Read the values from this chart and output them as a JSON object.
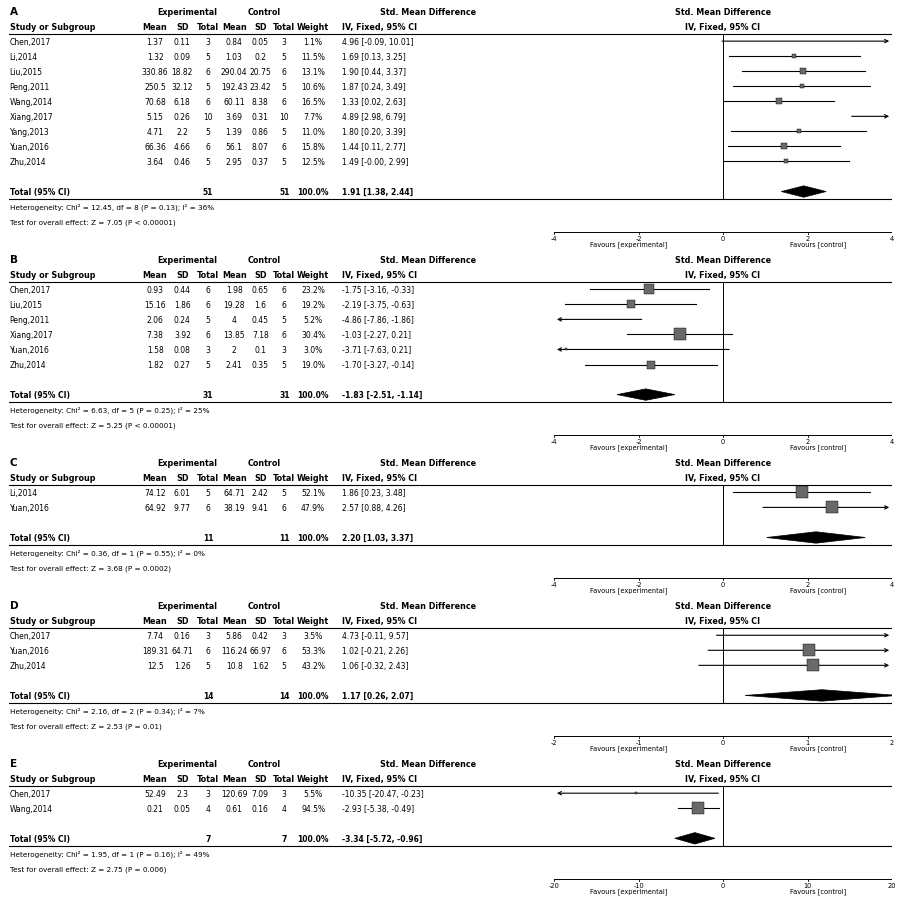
{
  "panels": [
    {
      "label": "A",
      "studies": [
        {
          "name": "Chen,2017",
          "exp_mean": "1.37",
          "exp_sd": "0.11",
          "exp_n": "3",
          "ctrl_mean": "0.84",
          "ctrl_sd": "0.05",
          "ctrl_n": "3",
          "weight": "1.1%",
          "ci_str": "4.96 [-0.09, 10.01]",
          "smd": 4.96,
          "ci_lo": -0.09,
          "ci_hi": 10.01
        },
        {
          "name": "Li,2014",
          "exp_mean": "1.32",
          "exp_sd": "0.09",
          "exp_n": "5",
          "ctrl_mean": "1.03",
          "ctrl_sd": "0.2",
          "ctrl_n": "5",
          "weight": "11.5%",
          "ci_str": "1.69 [0.13, 3.25]",
          "smd": 1.69,
          "ci_lo": 0.13,
          "ci_hi": 3.25
        },
        {
          "name": "Liu,2015",
          "exp_mean": "330.86",
          "exp_sd": "18.82",
          "exp_n": "6",
          "ctrl_mean": "290.04",
          "ctrl_sd": "20.75",
          "ctrl_n": "6",
          "weight": "13.1%",
          "ci_str": "1.90 [0.44, 3.37]",
          "smd": 1.9,
          "ci_lo": 0.44,
          "ci_hi": 3.37
        },
        {
          "name": "Peng,2011",
          "exp_mean": "250.5",
          "exp_sd": "32.12",
          "exp_n": "5",
          "ctrl_mean": "192.43",
          "ctrl_sd": "23.42",
          "ctrl_n": "5",
          "weight": "10.6%",
          "ci_str": "1.87 [0.24, 3.49]",
          "smd": 1.87,
          "ci_lo": 0.24,
          "ci_hi": 3.49
        },
        {
          "name": "Wang,2014",
          "exp_mean": "70.68",
          "exp_sd": "6.18",
          "exp_n": "6",
          "ctrl_mean": "60.11",
          "ctrl_sd": "8.38",
          "ctrl_n": "6",
          "weight": "16.5%",
          "ci_str": "1.33 [0.02, 2.63]",
          "smd": 1.33,
          "ci_lo": 0.02,
          "ci_hi": 2.63
        },
        {
          "name": "Xiang,2017",
          "exp_mean": "5.15",
          "exp_sd": "0.26",
          "exp_n": "10",
          "ctrl_mean": "3.69",
          "ctrl_sd": "0.31",
          "ctrl_n": "10",
          "weight": "7.7%",
          "ci_str": "4.89 [2.98, 6.79]",
          "smd": 4.89,
          "ci_lo": 2.98,
          "ci_hi": 6.79
        },
        {
          "name": "Yang,2013",
          "exp_mean": "4.71",
          "exp_sd": "2.2",
          "exp_n": "5",
          "ctrl_mean": "1.39",
          "ctrl_sd": "0.86",
          "ctrl_n": "5",
          "weight": "11.0%",
          "ci_str": "1.80 [0.20, 3.39]",
          "smd": 1.8,
          "ci_lo": 0.2,
          "ci_hi": 3.39
        },
        {
          "name": "Yuan,2016",
          "exp_mean": "66.36",
          "exp_sd": "4.66",
          "exp_n": "6",
          "ctrl_mean": "56.1",
          "ctrl_sd": "8.07",
          "ctrl_n": "6",
          "weight": "15.8%",
          "ci_str": "1.44 [0.11, 2.77]",
          "smd": 1.44,
          "ci_lo": 0.11,
          "ci_hi": 2.77
        },
        {
          "name": "Zhu,2014",
          "exp_mean": "3.64",
          "exp_sd": "0.46",
          "exp_n": "5",
          "ctrl_mean": "2.95",
          "ctrl_sd": "0.37",
          "ctrl_n": "5",
          "weight": "12.5%",
          "ci_str": "1.49 [-0.00, 2.99]",
          "smd": 1.49,
          "ci_lo": -0.0,
          "ci_hi": 2.99
        }
      ],
      "total_n_exp": "51",
      "total_n_ctrl": "51",
      "total_str": "1.91 [1.38, 2.44]",
      "total_smd": 1.91,
      "total_ci_lo": 1.38,
      "total_ci_hi": 2.44,
      "het_str": "Heterogeneity: Chi² = 12.45, df = 8 (P = 0.13); I² = 36%",
      "test_str": "Test for overall effect: Z = 7.05 (P < 0.00001)",
      "xlim": [
        -4,
        4
      ],
      "xticks": [
        -4,
        -2,
        0,
        2,
        4
      ],
      "favours_left": "Favours [experimental]",
      "favours_right": "Favours [control]"
    },
    {
      "label": "B",
      "studies": [
        {
          "name": "Chen,2017",
          "exp_mean": "0.93",
          "exp_sd": "0.44",
          "exp_n": "6",
          "ctrl_mean": "1.98",
          "ctrl_sd": "0.65",
          "ctrl_n": "6",
          "weight": "23.2%",
          "ci_str": "-1.75 [-3.16, -0.33]",
          "smd": -1.75,
          "ci_lo": -3.16,
          "ci_hi": -0.33
        },
        {
          "name": "Liu,2015",
          "exp_mean": "15.16",
          "exp_sd": "1.86",
          "exp_n": "6",
          "ctrl_mean": "19.28",
          "ctrl_sd": "1.6",
          "ctrl_n": "6",
          "weight": "19.2%",
          "ci_str": "-2.19 [-3.75, -0.63]",
          "smd": -2.19,
          "ci_lo": -3.75,
          "ci_hi": -0.63
        },
        {
          "name": "Peng,2011",
          "exp_mean": "2.06",
          "exp_sd": "0.24",
          "exp_n": "5",
          "ctrl_mean": "4",
          "ctrl_sd": "0.45",
          "ctrl_n": "5",
          "weight": "5.2%",
          "ci_str": "-4.86 [-7.86, -1.86]",
          "smd": -4.86,
          "ci_lo": -7.86,
          "ci_hi": -1.86
        },
        {
          "name": "Xiang,2017",
          "exp_mean": "7.38",
          "exp_sd": "3.92",
          "exp_n": "6",
          "ctrl_mean": "13.85",
          "ctrl_sd": "7.18",
          "ctrl_n": "6",
          "weight": "30.4%",
          "ci_str": "-1.03 [-2.27, 0.21]",
          "smd": -1.03,
          "ci_lo": -2.27,
          "ci_hi": 0.21
        },
        {
          "name": "Yuan,2016",
          "exp_mean": "1.58",
          "exp_sd": "0.08",
          "exp_n": "3",
          "ctrl_mean": "2",
          "ctrl_sd": "0.1",
          "ctrl_n": "3",
          "weight": "3.0%",
          "ci_str": "-3.71 [-7.63, 0.21]",
          "smd": -3.71,
          "ci_lo": -7.63,
          "ci_hi": 0.21
        },
        {
          "name": "Zhu,2014",
          "exp_mean": "1.82",
          "exp_sd": "0.27",
          "exp_n": "5",
          "ctrl_mean": "2.41",
          "ctrl_sd": "0.35",
          "ctrl_n": "5",
          "weight": "19.0%",
          "ci_str": "-1.70 [-3.27, -0.14]",
          "smd": -1.7,
          "ci_lo": -3.27,
          "ci_hi": -0.14
        }
      ],
      "total_n_exp": "31",
      "total_n_ctrl": "31",
      "total_str": "-1.83 [-2.51, -1.14]",
      "total_smd": -1.83,
      "total_ci_lo": -2.51,
      "total_ci_hi": -1.14,
      "het_str": "Heterogeneity: Chi² = 6.63, df = 5 (P = 0.25); I² = 25%",
      "test_str": "Test for overall effect: Z = 5.25 (P < 0.00001)",
      "xlim": [
        -4,
        4
      ],
      "xticks": [
        -4,
        -2,
        0,
        2,
        4
      ],
      "favours_left": "Favours [experimental]",
      "favours_right": "Favours [control]"
    },
    {
      "label": "C",
      "studies": [
        {
          "name": "Li,2014",
          "exp_mean": "74.12",
          "exp_sd": "6.01",
          "exp_n": "5",
          "ctrl_mean": "64.71",
          "ctrl_sd": "2.42",
          "ctrl_n": "5",
          "weight": "52.1%",
          "ci_str": "1.86 [0.23, 3.48]",
          "smd": 1.86,
          "ci_lo": 0.23,
          "ci_hi": 3.48
        },
        {
          "name": "Yuan,2016",
          "exp_mean": "64.92",
          "exp_sd": "9.77",
          "exp_n": "6",
          "ctrl_mean": "38.19",
          "ctrl_sd": "9.41",
          "ctrl_n": "6",
          "weight": "47.9%",
          "ci_str": "2.57 [0.88, 4.26]",
          "smd": 2.57,
          "ci_lo": 0.88,
          "ci_hi": 4.26
        }
      ],
      "total_n_exp": "11",
      "total_n_ctrl": "11",
      "total_str": "2.20 [1.03, 3.37]",
      "total_smd": 2.2,
      "total_ci_lo": 1.03,
      "total_ci_hi": 3.37,
      "het_str": "Heterogeneity: Chi² = 0.36, df = 1 (P = 0.55); I² = 0%",
      "test_str": "Test for overall effect: Z = 3.68 (P = 0.0002)",
      "xlim": [
        -4,
        4
      ],
      "xticks": [
        -4,
        -2,
        0,
        2,
        4
      ],
      "favours_left": "Favours [experimental]",
      "favours_right": "Favours [control]"
    },
    {
      "label": "D",
      "studies": [
        {
          "name": "Chen,2017",
          "exp_mean": "7.74",
          "exp_sd": "0.16",
          "exp_n": "3",
          "ctrl_mean": "5.86",
          "ctrl_sd": "0.42",
          "ctrl_n": "3",
          "weight": "3.5%",
          "ci_str": "4.73 [-0.11, 9.57]",
          "smd": 4.73,
          "ci_lo": -0.11,
          "ci_hi": 9.57
        },
        {
          "name": "Yuan,2016",
          "exp_mean": "189.31",
          "exp_sd": "64.71",
          "exp_n": "6",
          "ctrl_mean": "116.24",
          "ctrl_sd": "66.97",
          "ctrl_n": "6",
          "weight": "53.3%",
          "ci_str": "1.02 [-0.21, 2.26]",
          "smd": 1.02,
          "ci_lo": -0.21,
          "ci_hi": 2.26
        },
        {
          "name": "Zhu,2014",
          "exp_mean": "12.5",
          "exp_sd": "1.26",
          "exp_n": "5",
          "ctrl_mean": "10.8",
          "ctrl_sd": "1.62",
          "ctrl_n": "5",
          "weight": "43.2%",
          "ci_str": "1.06 [-0.32, 2.43]",
          "smd": 1.06,
          "ci_lo": -0.32,
          "ci_hi": 2.43
        }
      ],
      "total_n_exp": "14",
      "total_n_ctrl": "14",
      "total_str": "1.17 [0.26, 2.07]",
      "total_smd": 1.17,
      "total_ci_lo": 0.26,
      "total_ci_hi": 2.07,
      "het_str": "Heterogeneity: Chi² = 2.16, df = 2 (P = 0.34); I² = 7%",
      "test_str": "Test for overall effect: Z = 2.53 (P = 0.01)",
      "xlim": [
        -2,
        2
      ],
      "xticks": [
        -2,
        -1,
        0,
        1,
        2
      ],
      "favours_left": "Favours [experimental]",
      "favours_right": "Favours [control]"
    },
    {
      "label": "E",
      "studies": [
        {
          "name": "Chen,2017",
          "exp_mean": "52.49",
          "exp_sd": "2.3",
          "exp_n": "3",
          "ctrl_mean": "120.69",
          "ctrl_sd": "7.09",
          "ctrl_n": "3",
          "weight": "5.5%",
          "ci_str": "-10.35 [-20.47, -0.23]",
          "smd": -10.35,
          "ci_lo": -20.47,
          "ci_hi": -0.23
        },
        {
          "name": "Wang,2014",
          "exp_mean": "0.21",
          "exp_sd": "0.05",
          "exp_n": "4",
          "ctrl_mean": "0.61",
          "ctrl_sd": "0.16",
          "ctrl_n": "4",
          "weight": "94.5%",
          "ci_str": "-2.93 [-5.38, -0.49]",
          "smd": -2.93,
          "ci_lo": -5.38,
          "ci_hi": -0.49
        }
      ],
      "total_n_exp": "7",
      "total_n_ctrl": "7",
      "total_str": "-3.34 [-5.72, -0.96]",
      "total_smd": -3.34,
      "total_ci_lo": -5.72,
      "total_ci_hi": -0.96,
      "het_str": "Heterogeneity: Chi² = 1.95, df = 1 (P = 0.16); I² = 49%",
      "test_str": "Test for overall effect: Z = 2.75 (P = 0.006)",
      "xlim": [
        -20,
        20
      ],
      "xticks": [
        -20,
        -10,
        0,
        10,
        20
      ],
      "favours_left": "Favours [experimental]",
      "favours_right": "Favours [control]"
    }
  ]
}
